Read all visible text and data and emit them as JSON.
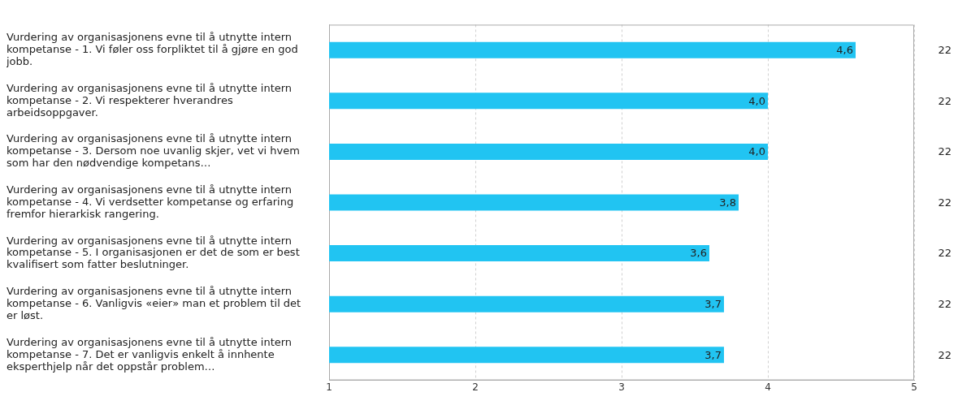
{
  "chart_data": {
    "type": "bar",
    "orientation": "horizontal",
    "categories": [
      "Vurdering av organisasjonens evne til å utnytte intern kompetanse - 1. Vi føler oss forpliktet til å gjøre en god jobb.",
      "Vurdering av organisasjonens evne til å utnytte intern kompetanse - 2. Vi respekterer hverandres arbeidsoppgaver.",
      "Vurdering av organisasjonens evne til å utnytte intern kompetanse - 3. Dersom noe uvanlig skjer, vet vi hvem som har den nødvendige kompetans…",
      "Vurdering av organisasjonens evne til å utnytte intern kompetanse - 4. Vi verdsetter kompetanse og erfaring fremfor hierarkisk rangering.",
      "Vurdering av organisasjonens evne til å utnytte intern kompetanse - 5. I organisasjonen er det de som er best kvalifisert som fatter beslutninger.",
      "Vurdering av organisasjonens evne til å utnytte intern kompetanse - 6. Vanligvis «eier» man et problem til det er løst.",
      "Vurdering av organisasjonens evne til å utnytte intern kompetanse - 7. Det er vanligvis enkelt å innhente eksperthjelp når det oppstår problem…"
    ],
    "values": [
      4.6,
      4.0,
      4.0,
      3.8,
      3.6,
      3.7,
      3.7
    ],
    "value_labels": [
      "4,6",
      "4,0",
      "4,0",
      "3,8",
      "3,6",
      "3,7",
      "3,7"
    ],
    "color": "#21c4f2",
    "xlim": [
      1,
      5
    ],
    "xticks": [
      1,
      2,
      3,
      4,
      5
    ],
    "grid": "x",
    "legend": false,
    "annotations": [
      "22",
      "22",
      "22",
      "22",
      "22",
      "22",
      "22"
    ]
  }
}
